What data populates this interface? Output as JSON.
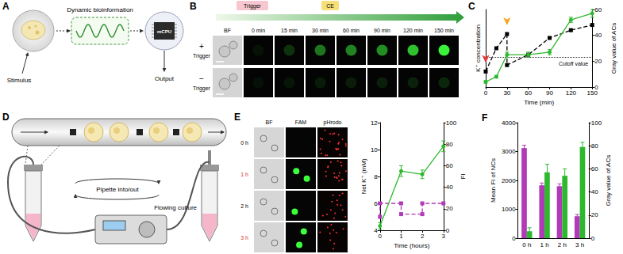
{
  "panels": {
    "A": {
      "letter": "A",
      "stimulus": "Stimulus",
      "process": "Dynamic bioinformation",
      "chip": "mCPU",
      "output": "Output"
    },
    "B": {
      "letter": "B",
      "trigger": "Trigger",
      "ce": "CE",
      "columns": [
        "BF",
        "0 min",
        "15 min",
        "30 min",
        "60 min",
        "90 min",
        "120 min",
        "150 min"
      ],
      "rows": [
        [
          "+",
          "Trigger"
        ],
        [
          "−",
          "Trigger"
        ]
      ]
    },
    "C": {
      "letter": "C"
    },
    "D": {
      "letter": "D",
      "loop_label": "Pipette into/out",
      "culture_label": "Flowing culture"
    },
    "E": {
      "letter": "E",
      "columns": [
        "BF",
        "FAM",
        "pHrodo"
      ],
      "rows": [
        {
          "label": "0 h",
          "color": "#000000"
        },
        {
          "label": "1 h",
          "color": "#d32f2f"
        },
        {
          "label": "2 h",
          "color": "#000000"
        },
        {
          "label": "3 h",
          "color": "#d32f2f"
        }
      ]
    },
    "F": {
      "letter": "F"
    }
  },
  "chart_data": [
    {
      "type": "line",
      "xlabel": "Time (min)",
      "ylabel": "K⁺ concentration",
      "y2label": "Gray value of ACs",
      "xlim": [
        0,
        150
      ],
      "xticks": [
        0,
        30,
        60,
        90,
        120,
        150
      ],
      "ylim": [
        0,
        60
      ],
      "y2lim": [
        0,
        60
      ],
      "y2ticks": [
        0,
        20,
        40,
        60
      ],
      "cutoff": {
        "label": "Cutoff value",
        "value": 23,
        "axis": "y2"
      },
      "arrows": [
        {
          "x": 0,
          "color": "#e53935"
        },
        {
          "x": 30,
          "color": "#f5a623"
        }
      ],
      "series": [
        {
          "color": "#000000",
          "line_style": "dashed",
          "marker": "square",
          "x": [
            0,
            15,
            30,
            30,
            60,
            90,
            120,
            150
          ],
          "values": [
            12,
            30,
            41,
            17,
            25,
            38,
            44,
            48
          ]
        },
        {
          "color": "#2eb82e",
          "line_style": "solid",
          "marker": "circle",
          "axis": "y2",
          "x": [
            0,
            15,
            30,
            60,
            90,
            120,
            150
          ],
          "values": [
            4,
            8,
            25,
            25,
            27,
            52,
            57
          ],
          "errors": [
            1,
            1,
            2,
            2,
            2,
            2,
            3
          ]
        }
      ]
    },
    {
      "type": "line",
      "xlabel": "Time (hours)",
      "ylabel": "Net K⁺ (mM)",
      "y2label": "FI",
      "xlim": [
        0,
        3
      ],
      "xticks": [
        0,
        1,
        2,
        3
      ],
      "ylim": [
        4,
        12
      ],
      "yticks": [
        4,
        6,
        8,
        10,
        12
      ],
      "y2lim": [
        0,
        100
      ],
      "y2ticks": [
        0,
        20,
        40,
        60,
        80,
        100
      ],
      "series": [
        {
          "color": "#b03ab8",
          "line_style": "dashed",
          "marker": "square",
          "x": [
            0,
            0,
            1,
            1,
            2,
            2,
            3
          ],
          "values": [
            5,
            6,
            6,
            5.2,
            5.2,
            6,
            6
          ]
        },
        {
          "color": "#2eb82e",
          "line_style": "solid",
          "marker": "circle",
          "axis": "y2",
          "x": [
            0,
            1,
            2,
            3
          ],
          "values": [
            4,
            55,
            52,
            78
          ],
          "errors": [
            3,
            5,
            4,
            5
          ]
        }
      ]
    },
    {
      "type": "bar",
      "categories": [
        "0 h",
        "1 h",
        "2 h",
        "3 h"
      ],
      "ylabel": "Mean FI of NCs",
      "y2label": "Gray value of ACs",
      "ylim": [
        0,
        4000
      ],
      "yticks": [
        0,
        1000,
        2000,
        3000,
        4000
      ],
      "y2lim": [
        0,
        100
      ],
      "y2ticks": [
        0,
        20,
        40,
        60,
        80,
        100
      ],
      "series": [
        {
          "color": "#b03ab8",
          "values": [
            3120,
            1830,
            1800,
            760
          ],
          "errors": [
            100,
            80,
            80,
            60
          ]
        },
        {
          "color": "#2eb82e",
          "axis": "y2",
          "values": [
            6,
            57,
            54,
            79
          ],
          "errors": [
            3,
            7,
            6,
            4
          ]
        }
      ]
    }
  ]
}
